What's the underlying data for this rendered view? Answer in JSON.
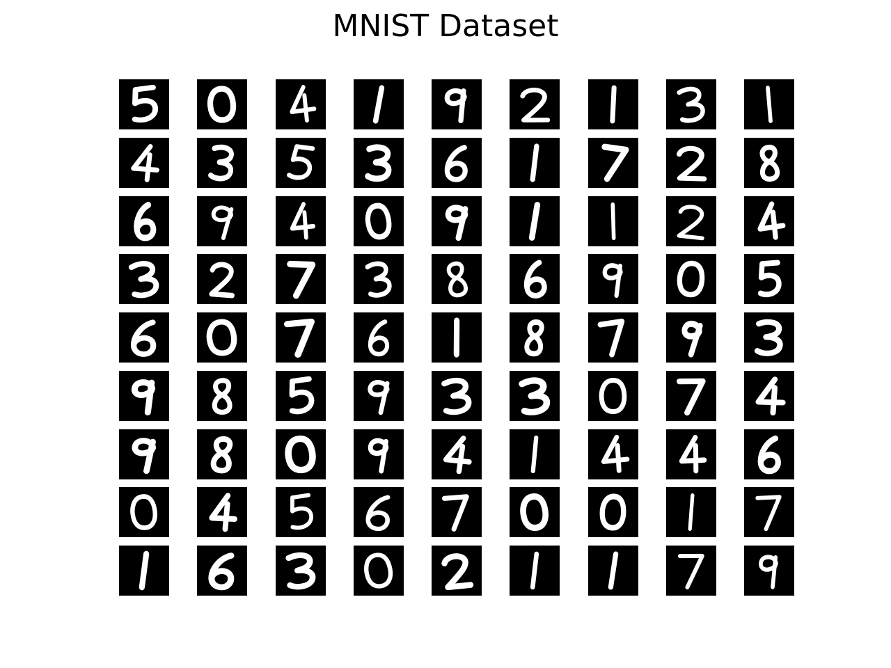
{
  "title": "MNIST Dataset",
  "grid": {
    "rows": 9,
    "cols": 9,
    "tile_background": "#000000",
    "digit_color": "#ffffff"
  },
  "digits": [
    [
      5,
      0,
      4,
      1,
      9,
      2,
      1,
      3,
      1
    ],
    [
      4,
      3,
      5,
      3,
      6,
      1,
      7,
      2,
      8
    ],
    [
      6,
      9,
      4,
      0,
      9,
      1,
      1,
      2,
      4
    ],
    [
      3,
      2,
      7,
      3,
      8,
      6,
      9,
      0,
      5
    ],
    [
      6,
      0,
      7,
      6,
      1,
      8,
      7,
      9,
      3
    ],
    [
      9,
      8,
      5,
      9,
      3,
      3,
      0,
      7,
      4
    ],
    [
      9,
      8,
      0,
      9,
      4,
      1,
      4,
      4,
      6
    ],
    [
      0,
      4,
      5,
      6,
      7,
      0,
      0,
      1,
      7
    ],
    [
      1,
      6,
      3,
      0,
      2,
      1,
      1,
      7,
      9
    ]
  ]
}
